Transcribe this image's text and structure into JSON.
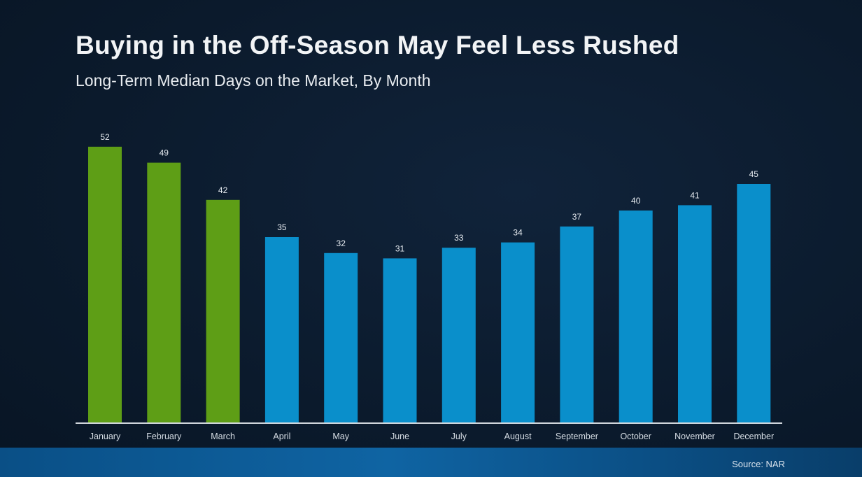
{
  "chart_data": {
    "type": "bar",
    "title": "Buying in the Off-Season May Feel Less Rushed",
    "subtitle": "Long-Term Median Days on the Market, By Month",
    "categories": [
      "January",
      "February",
      "March",
      "April",
      "May",
      "June",
      "July",
      "August",
      "September",
      "October",
      "November",
      "December"
    ],
    "values": [
      52,
      49,
      42,
      35,
      32,
      31,
      33,
      34,
      37,
      40,
      41,
      45
    ],
    "highlight_count": 3,
    "colors": {
      "highlight": "#5e9e16",
      "default": "#0a8fcb",
      "axis": "#d0d6dc"
    },
    "xlabel": "",
    "ylabel": "",
    "ylim": [
      0,
      55
    ],
    "grid": false
  },
  "source": "Source: NAR"
}
